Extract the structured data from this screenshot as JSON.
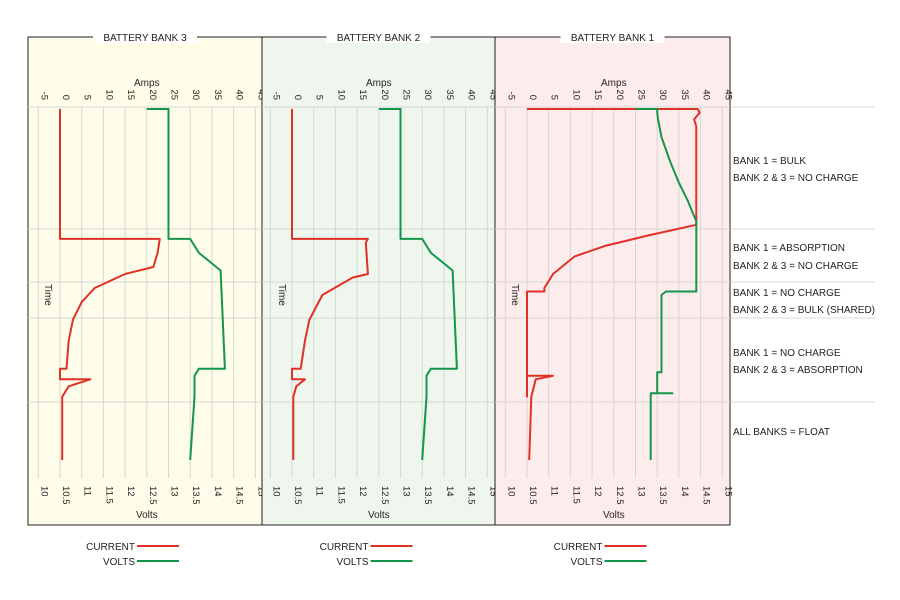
{
  "chart_data": {
    "type": "line",
    "time_axis_label": "Time",
    "top_axis_label": "Amps",
    "bottom_axis_label": "Volts",
    "amps_ticks": [
      "-5",
      "0",
      "5",
      "10",
      "15",
      "20",
      "25",
      "30",
      "35",
      "40",
      "45"
    ],
    "volts_ticks": [
      "10",
      "10.5",
      "11",
      "11.5",
      "12",
      "12.5",
      "13",
      "13.5",
      "14",
      "14.5",
      "15"
    ],
    "amps_range": [
      -5,
      45
    ],
    "volts_range": [
      10,
      15
    ],
    "panels": [
      {
        "title": "BATTERY BANK 3",
        "background": "#fdfde9",
        "current": [
          [
            0,
            0
          ],
          [
            0,
            0.37
          ],
          [
            23,
            0.37
          ],
          [
            22.5,
            0.41
          ],
          [
            21.5,
            0.45
          ],
          [
            15,
            0.47
          ],
          [
            8,
            0.51
          ],
          [
            5,
            0.55
          ],
          [
            3,
            0.6
          ],
          [
            2,
            0.66
          ],
          [
            1.5,
            0.74
          ],
          [
            0,
            0.74
          ],
          [
            0,
            0.77
          ],
          [
            7,
            0.77
          ],
          [
            2,
            0.79
          ],
          [
            0.5,
            0.82
          ],
          [
            0.5,
            1
          ]
        ],
        "volts": [
          [
            12.5,
            0
          ],
          [
            13,
            0
          ],
          [
            13,
            0.37
          ],
          [
            13.5,
            0.37
          ],
          [
            13.7,
            0.41
          ],
          [
            13.9,
            0.43
          ],
          [
            14.2,
            0.46
          ],
          [
            14.3,
            0.74
          ],
          [
            13.7,
            0.74
          ],
          [
            13.6,
            0.76
          ],
          [
            13.6,
            0.82
          ],
          [
            13.5,
            1
          ]
        ]
      },
      {
        "title": "BATTERY BANK 2",
        "background": "#eef6ee",
        "current": [
          [
            0,
            0
          ],
          [
            0,
            0.37
          ],
          [
            17.5,
            0.37
          ],
          [
            17,
            0.38
          ],
          [
            17.5,
            0.47
          ],
          [
            14,
            0.48
          ],
          [
            7,
            0.53
          ],
          [
            4,
            0.6
          ],
          [
            3,
            0.66
          ],
          [
            2,
            0.74
          ],
          [
            0,
            0.74
          ],
          [
            0,
            0.77
          ],
          [
            3,
            0.77
          ],
          [
            1,
            0.79
          ],
          [
            0.3,
            0.82
          ],
          [
            0.3,
            1
          ]
        ],
        "volts": [
          [
            12.5,
            0
          ],
          [
            13,
            0
          ],
          [
            13,
            0.37
          ],
          [
            13.5,
            0.37
          ],
          [
            13.7,
            0.41
          ],
          [
            13.9,
            0.43
          ],
          [
            14.2,
            0.46
          ],
          [
            14.3,
            0.74
          ],
          [
            13.7,
            0.74
          ],
          [
            13.6,
            0.76
          ],
          [
            13.6,
            0.82
          ],
          [
            13.5,
            1
          ]
        ]
      },
      {
        "title": "BATTERY BANK 1",
        "background": "#fdecec",
        "current": [
          [
            0,
            0
          ],
          [
            39.3,
            0
          ],
          [
            39.8,
            0.01
          ],
          [
            38.5,
            0.03
          ],
          [
            39,
            0.05
          ],
          [
            39,
            0.33
          ],
          [
            28,
            0.36
          ],
          [
            18,
            0.39
          ],
          [
            11,
            0.42
          ],
          [
            6,
            0.47
          ],
          [
            4,
            0.51
          ],
          [
            4,
            0.52
          ],
          [
            0,
            0.52
          ],
          [
            0,
            0.82
          ],
          [
            0,
            0.76
          ],
          [
            6,
            0.76
          ],
          [
            2,
            0.77
          ],
          [
            1,
            0.82
          ],
          [
            0.5,
            1
          ]
        ],
        "volts": [
          [
            13,
            0
          ],
          [
            13.5,
            0
          ],
          [
            13.5,
            0.01
          ],
          [
            13.52,
            0.03
          ],
          [
            13.6,
            0.08
          ],
          [
            13.8,
            0.15
          ],
          [
            14,
            0.21
          ],
          [
            14.2,
            0.26
          ],
          [
            14.3,
            0.29
          ],
          [
            14.4,
            0.32
          ],
          [
            14.4,
            0.52
          ],
          [
            13.7,
            0.52
          ],
          [
            13.6,
            0.53
          ],
          [
            13.6,
            0.75
          ],
          [
            13.5,
            0.75
          ],
          [
            13.5,
            0.81
          ],
          [
            13.35,
            0.81
          ],
          [
            13.85,
            0.81
          ],
          [
            13.35,
            0.81
          ],
          [
            13.35,
            1
          ]
        ]
      }
    ],
    "stage_notes": [
      [
        "BANK 1 = BULK",
        "BANK 2 & 3 = NO CHARGE"
      ],
      [
        "BANK 1 = ABSORPTION",
        "BANK 2 & 3 = NO CHARGE"
      ],
      [
        "BANK 1 = NO CHARGE",
        "BANK 2 & 3 = BULK (SHARED)"
      ],
      [
        "BANK 1 = NO CHARGE",
        "BANK 2 & 3 = ABSORPTION"
      ],
      [
        "ALL BANKS = FLOAT"
      ]
    ],
    "legend": [
      {
        "label": "CURRENT",
        "color": "#e03127"
      },
      {
        "label": "VOLTS",
        "color": "#14964a"
      }
    ],
    "grid": true
  }
}
